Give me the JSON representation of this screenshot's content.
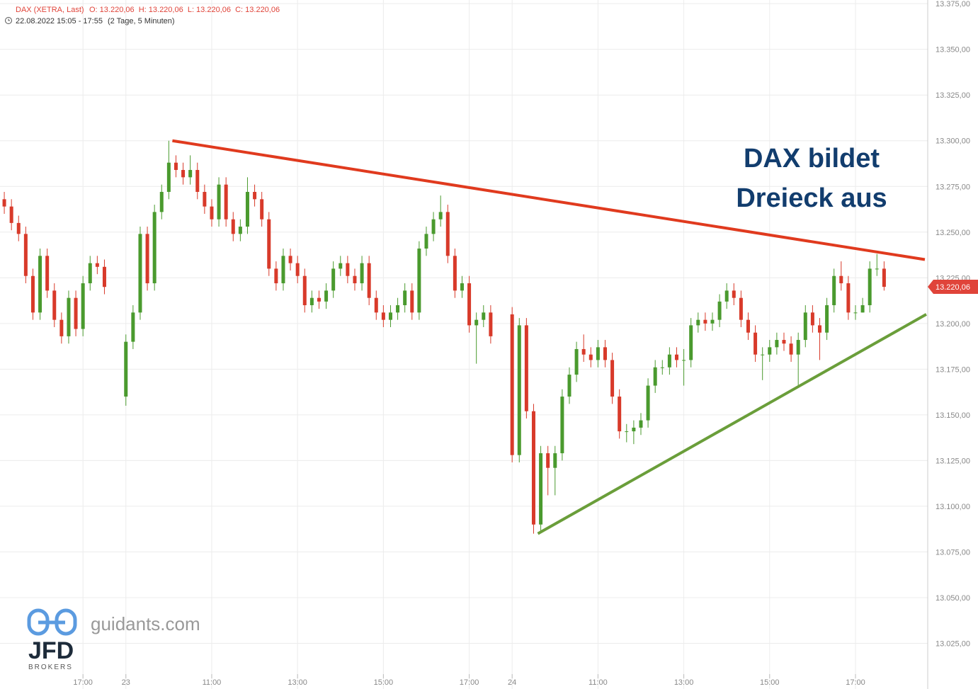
{
  "header": {
    "instrument": "DAX (XETRA, Last)",
    "ohlc": "O: 13.220,06  H: 13.220,06  L: 13.220,06  C: 13.220,06",
    "period": "22.08.2022 15:05 - 17:55",
    "span": "(2 Tage, 5 Minuten)"
  },
  "branding": {
    "site": "guidants.com",
    "logo": "JFD",
    "sub": "BROKERS"
  },
  "chart_data": {
    "type": "candlestick",
    "annotations": [
      "DAX bildet",
      "Dreieck aus"
    ],
    "up_color": "#4a9a2e",
    "down_color": "#d83a2a",
    "grid": true,
    "xlim": [
      -176,
      1121
    ],
    "ylim": [
      13000,
      13377
    ],
    "xticks": [
      {
        "value": -60,
        "label": "17:00"
      },
      {
        "value": 0,
        "label": "23"
      },
      {
        "value": 120,
        "label": "11:00"
      },
      {
        "value": 240,
        "label": "13:00"
      },
      {
        "value": 360,
        "label": "15:00"
      },
      {
        "value": 480,
        "label": "17:00"
      },
      {
        "value": 540,
        "label": "24"
      },
      {
        "value": 660,
        "label": "11:00"
      },
      {
        "value": 780,
        "label": "13:00"
      },
      {
        "value": 900,
        "label": "15:00"
      },
      {
        "value": 1020,
        "label": "17:00"
      }
    ],
    "yticks": [
      {
        "value": 13025,
        "label": "13.025,00"
      },
      {
        "value": 13050,
        "label": "13.050,00"
      },
      {
        "value": 13075,
        "label": "13.075,00"
      },
      {
        "value": 13100,
        "label": "13.100,00"
      },
      {
        "value": 13125,
        "label": "13.125,00"
      },
      {
        "value": 13150,
        "label": "13.150,00"
      },
      {
        "value": 13175,
        "label": "13.175,00"
      },
      {
        "value": 13200,
        "label": "13.200,00"
      },
      {
        "value": 13225,
        "label": "13.225,00"
      },
      {
        "value": 13250,
        "label": "13.250,00"
      },
      {
        "value": 13275,
        "label": "13.275,00"
      },
      {
        "value": 13300,
        "label": "13.300,00"
      },
      {
        "value": 13325,
        "label": "13.325,00"
      },
      {
        "value": 13350,
        "label": "13.350,00"
      },
      {
        "value": 13375,
        "label": "13.375,00"
      }
    ],
    "last_price": {
      "value": 13220.06,
      "label": "13.220,06",
      "color": "#e0443a"
    },
    "trendlines": [
      {
        "color": "#e03a1e",
        "x": [
          65,
          1117
        ],
        "y": [
          13300,
          13235
        ]
      },
      {
        "color": "#6a9e3a",
        "x": [
          576,
          1119
        ],
        "y": [
          13085,
          13205
        ]
      }
    ],
    "x": [
      -170,
      -160,
      -150,
      -140,
      -130,
      -120,
      -110,
      -100,
      -90,
      -80,
      -70,
      -60,
      -50,
      -40,
      -30,
      0,
      10,
      20,
      30,
      40,
      50,
      60,
      70,
      80,
      90,
      100,
      110,
      120,
      130,
      140,
      150,
      160,
      170,
      180,
      190,
      200,
      210,
      220,
      230,
      240,
      250,
      260,
      270,
      280,
      290,
      300,
      310,
      320,
      330,
      340,
      350,
      360,
      370,
      380,
      390,
      400,
      410,
      420,
      430,
      440,
      450,
      460,
      470,
      480,
      490,
      500,
      510,
      540,
      550,
      560,
      570,
      580,
      590,
      600,
      610,
      620,
      630,
      640,
      650,
      660,
      670,
      680,
      690,
      700,
      710,
      720,
      730,
      740,
      750,
      760,
      770,
      780,
      790,
      800,
      810,
      820,
      830,
      840,
      850,
      860,
      870,
      880,
      890,
      900,
      910,
      920,
      930,
      940,
      950,
      960,
      970,
      980,
      990,
      1000,
      1010,
      1020,
      1030,
      1040,
      1050,
      1060
    ],
    "open": [
      13268,
      13264,
      13255,
      13249,
      13226,
      13206,
      13237,
      13218,
      13202,
      13193,
      13214,
      13197,
      13222,
      13233,
      13231,
      13160,
      13190,
      13206,
      13249,
      13222,
      13261,
      13272,
      13288,
      13284,
      13280,
      13284,
      13272,
      13264,
      13257,
      13276,
      13257,
      13249,
      13253,
      13272,
      13268,
      13257,
      13230,
      13222,
      13237,
      13233,
      13226,
      13210,
      13214,
      13212,
      13218,
      13230,
      13233,
      13226,
      13222,
      13233,
      13214,
      13206,
      13202,
      13206,
      13210,
      13218,
      13206,
      13241,
      13249,
      13257,
      13261,
      13237,
      13218,
      13222,
      13199,
      13202,
      13206,
      13205,
      13128,
      13199,
      13152,
      13090,
      13129,
      13121,
      13129,
      13160,
      13172,
      13186,
      13183,
      13180,
      13187,
      13180,
      13160,
      13141,
      13141,
      13143,
      13147,
      13166,
      13176,
      13176,
      13183,
      13180,
      13180,
      13199,
      13202,
      13200,
      13202,
      13212,
      13218,
      13214,
      13202,
      13195,
      13183,
      13183,
      13187,
      13191,
      13189,
      13183,
      13191,
      13206,
      13199,
      13195,
      13210,
      13226,
      13222,
      13206,
      13206,
      13210,
      13230,
      13230
    ],
    "high": [
      13272,
      13268,
      13259,
      13253,
      13230,
      13241,
      13241,
      13222,
      13206,
      13218,
      13218,
      13226,
      13237,
      13237,
      13235,
      13194,
      13210,
      13253,
      13253,
      13265,
      13276,
      13300,
      13292,
      13288,
      13292,
      13288,
      13276,
      13268,
      13280,
      13280,
      13261,
      13257,
      13280,
      13276,
      13272,
      13261,
      13234,
      13241,
      13241,
      13237,
      13230,
      13218,
      13218,
      13222,
      13234,
      13237,
      13237,
      13230,
      13237,
      13237,
      13218,
      13210,
      13210,
      13214,
      13222,
      13222,
      13245,
      13253,
      13261,
      13270,
      13265,
      13241,
      13226,
      13226,
      13206,
      13210,
      13210,
      13209,
      13203,
      13203,
      13156,
      13133,
      13133,
      13133,
      13164,
      13176,
      13190,
      13194,
      13187,
      13191,
      13191,
      13184,
      13164,
      13145,
      13147,
      13151,
      13170,
      13180,
      13180,
      13187,
      13187,
      13186,
      13203,
      13206,
      13206,
      13206,
      13216,
      13222,
      13222,
      13218,
      13206,
      13199,
      13187,
      13191,
      13195,
      13195,
      13193,
      13195,
      13210,
      13210,
      13203,
      13214,
      13230,
      13234,
      13226,
      13210,
      13214,
      13234,
      13238,
      13234
    ],
    "low": [
      13260,
      13251,
      13245,
      13222,
      13202,
      13202,
      13214,
      13198,
      13189,
      13189,
      13193,
      13193,
      13218,
      13227,
      13216,
      13155,
      13186,
      13202,
      13218,
      13218,
      13257,
      13268,
      13280,
      13276,
      13276,
      13268,
      13260,
      13253,
      13253,
      13253,
      13245,
      13245,
      13249,
      13264,
      13253,
      13226,
      13218,
      13218,
      13229,
      13222,
      13206,
      13206,
      13208,
      13208,
      13214,
      13226,
      13222,
      13218,
      13218,
      13210,
      13202,
      13198,
      13198,
      13202,
      13206,
      13202,
      13202,
      13237,
      13245,
      13253,
      13233,
      13214,
      13214,
      13195,
      13178,
      13198,
      13189,
      13124,
      13124,
      13148,
      13085,
      13086,
      13106,
      13106,
      13125,
      13156,
      13168,
      13179,
      13176,
      13176,
      13176,
      13156,
      13137,
      13135,
      13134,
      13139,
      13143,
      13162,
      13172,
      13172,
      13176,
      13166,
      13176,
      13195,
      13196,
      13196,
      13198,
      13208,
      13210,
      13198,
      13191,
      13179,
      13169,
      13179,
      13183,
      13185,
      13179,
      13166,
      13187,
      13195,
      13180,
      13191,
      13206,
      13218,
      13202,
      13202,
      13206,
      13206,
      13226,
      13218
    ],
    "close": [
      13264,
      13255,
      13249,
      13226,
      13206,
      13237,
      13218,
      13202,
      13193,
      13214,
      13197,
      13222,
      13233,
      13231,
      13220,
      13190,
      13206,
      13249,
      13222,
      13261,
      13272,
      13288,
      13284,
      13280,
      13284,
      13272,
      13264,
      13257,
      13276,
      13257,
      13249,
      13253,
      13272,
      13268,
      13257,
      13230,
      13222,
      13237,
      13233,
      13226,
      13210,
      13214,
      13212,
      13218,
      13230,
      13233,
      13226,
      13222,
      13233,
      13214,
      13206,
      13202,
      13206,
      13210,
      13218,
      13206,
      13241,
      13249,
      13257,
      13261,
      13237,
      13218,
      13222,
      13199,
      13202,
      13206,
      13193,
      13128,
      13199,
      13152,
      13090,
      13129,
      13121,
      13129,
      13160,
      13172,
      13186,
      13183,
      13180,
      13187,
      13180,
      13160,
      13141,
      13141,
      13143,
      13147,
      13166,
      13176,
      13176,
      13183,
      13180,
      13180,
      13199,
      13202,
      13200,
      13202,
      13212,
      13218,
      13214,
      13202,
      13195,
      13183,
      13183,
      13187,
      13191,
      13189,
      13183,
      13191,
      13206,
      13199,
      13195,
      13210,
      13226,
      13222,
      13206,
      13206,
      13210,
      13230,
      13230,
      13220.06
    ]
  }
}
